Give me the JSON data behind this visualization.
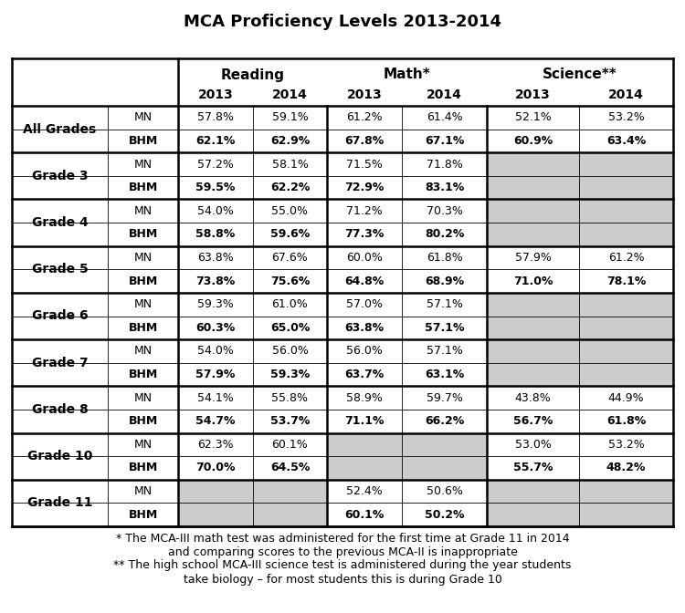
{
  "title": "MCA Proficiency Levels 2013-2014",
  "rows": [
    {
      "grade": "All Grades",
      "type": "MN",
      "read_2013": "57.8%",
      "read_2014": "59.1%",
      "math_2013": "61.2%",
      "math_2014": "61.4%",
      "sci_2013": "52.1%",
      "sci_2014": "53.2%"
    },
    {
      "grade": "All Grades",
      "type": "BHM",
      "read_2013": "62.1%",
      "read_2014": "62.9%",
      "math_2013": "67.8%",
      "math_2014": "67.1%",
      "sci_2013": "60.9%",
      "sci_2014": "63.4%"
    },
    {
      "grade": "Grade 3",
      "type": "MN",
      "read_2013": "57.2%",
      "read_2014": "58.1%",
      "math_2013": "71.5%",
      "math_2014": "71.8%",
      "sci_2013": "",
      "sci_2014": ""
    },
    {
      "grade": "Grade 3",
      "type": "BHM",
      "read_2013": "59.5%",
      "read_2014": "62.2%",
      "math_2013": "72.9%",
      "math_2014": "83.1%",
      "sci_2013": "",
      "sci_2014": ""
    },
    {
      "grade": "Grade 4",
      "type": "MN",
      "read_2013": "54.0%",
      "read_2014": "55.0%",
      "math_2013": "71.2%",
      "math_2014": "70.3%",
      "sci_2013": "",
      "sci_2014": ""
    },
    {
      "grade": "Grade 4",
      "type": "BHM",
      "read_2013": "58.8%",
      "read_2014": "59.6%",
      "math_2013": "77.3%",
      "math_2014": "80.2%",
      "sci_2013": "",
      "sci_2014": ""
    },
    {
      "grade": "Grade 5",
      "type": "MN",
      "read_2013": "63.8%",
      "read_2014": "67.6%",
      "math_2013": "60.0%",
      "math_2014": "61.8%",
      "sci_2013": "57.9%",
      "sci_2014": "61.2%"
    },
    {
      "grade": "Grade 5",
      "type": "BHM",
      "read_2013": "73.8%",
      "read_2014": "75.6%",
      "math_2013": "64.8%",
      "math_2014": "68.9%",
      "sci_2013": "71.0%",
      "sci_2014": "78.1%"
    },
    {
      "grade": "Grade 6",
      "type": "MN",
      "read_2013": "59.3%",
      "read_2014": "61.0%",
      "math_2013": "57.0%",
      "math_2014": "57.1%",
      "sci_2013": "",
      "sci_2014": ""
    },
    {
      "grade": "Grade 6",
      "type": "BHM",
      "read_2013": "60.3%",
      "read_2014": "65.0%",
      "math_2013": "63.8%",
      "math_2014": "57.1%",
      "sci_2013": "",
      "sci_2014": ""
    },
    {
      "grade": "Grade 7",
      "type": "MN",
      "read_2013": "54.0%",
      "read_2014": "56.0%",
      "math_2013": "56.0%",
      "math_2014": "57.1%",
      "sci_2013": "",
      "sci_2014": ""
    },
    {
      "grade": "Grade 7",
      "type": "BHM",
      "read_2013": "57.9%",
      "read_2014": "59.3%",
      "math_2013": "63.7%",
      "math_2014": "63.1%",
      "sci_2013": "",
      "sci_2014": ""
    },
    {
      "grade": "Grade 8",
      "type": "MN",
      "read_2013": "54.1%",
      "read_2014": "55.8%",
      "math_2013": "58.9%",
      "math_2014": "59.7%",
      "sci_2013": "43.8%",
      "sci_2014": "44.9%"
    },
    {
      "grade": "Grade 8",
      "type": "BHM",
      "read_2013": "54.7%",
      "read_2014": "53.7%",
      "math_2013": "71.1%",
      "math_2014": "66.2%",
      "sci_2013": "56.7%",
      "sci_2014": "61.8%"
    },
    {
      "grade": "Grade 10",
      "type": "MN",
      "read_2013": "62.3%",
      "read_2014": "60.1%",
      "math_2013": "",
      "math_2014": "",
      "sci_2013": "53.0%",
      "sci_2014": "53.2%"
    },
    {
      "grade": "Grade 10",
      "type": "BHM",
      "read_2013": "70.0%",
      "read_2014": "64.5%",
      "math_2013": "",
      "math_2014": "",
      "sci_2013": "55.7%",
      "sci_2014": "48.2%"
    },
    {
      "grade": "Grade 11",
      "type": "MN",
      "read_2013": "",
      "read_2014": "",
      "math_2013": "52.4%",
      "math_2014": "50.6%",
      "sci_2013": "",
      "sci_2014": ""
    },
    {
      "grade": "Grade 11",
      "type": "BHM",
      "read_2013": "",
      "read_2014": "",
      "math_2013": "60.1%",
      "math_2014": "50.2%",
      "sci_2013": "",
      "sci_2014": ""
    }
  ],
  "gray_cells": {
    "Grade 3": [
      "sci"
    ],
    "Grade 4": [
      "sci"
    ],
    "Grade 6": [
      "sci"
    ],
    "Grade 7": [
      "sci"
    ],
    "Grade 10": [
      "math"
    ],
    "Grade 11": [
      "read",
      "sci"
    ]
  },
  "footnotes": [
    "* The MCA-III math test was administered for the first time at Grade 11 in 2014",
    "and comparing scores to the previous MCA-II is inappropriate",
    "** The high school MCA-III science test is administered during the year students",
    "take biology – for most students this is during Grade 10"
  ],
  "gray_color": "#cccccc",
  "border_thick": 1.8,
  "border_thin": 0.6,
  "title_fontsize": 13,
  "header_fontsize": 11,
  "year_fontsize": 10,
  "data_fontsize": 9,
  "grade_fontsize": 10,
  "footnote_fontsize": 9
}
